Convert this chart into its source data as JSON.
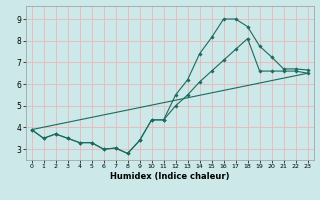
{
  "xlabel": "Humidex (Indice chaleur)",
  "bg_color": "#cce8e8",
  "grid_color": "#e8b8b8",
  "line_color": "#1a6b60",
  "xlim": [
    -0.5,
    23.5
  ],
  "ylim": [
    2.5,
    9.6
  ],
  "xticks": [
    0,
    1,
    2,
    3,
    4,
    5,
    6,
    7,
    8,
    9,
    10,
    11,
    12,
    13,
    14,
    15,
    16,
    17,
    18,
    19,
    20,
    21,
    22,
    23
  ],
  "yticks": [
    3,
    4,
    5,
    6,
    7,
    8,
    9
  ],
  "curve1_x": [
    0,
    1,
    2,
    3,
    4,
    5,
    6,
    7,
    8,
    9,
    10,
    11,
    12,
    13,
    14,
    15,
    16,
    17,
    18,
    19,
    20,
    21,
    22,
    23
  ],
  "curve1_y": [
    3.9,
    3.5,
    3.7,
    3.5,
    3.3,
    3.3,
    3.0,
    3.05,
    2.8,
    3.4,
    4.35,
    4.35,
    5.5,
    6.2,
    7.4,
    8.15,
    9.0,
    9.0,
    8.65,
    7.75,
    7.25,
    6.7,
    6.7,
    6.65
  ],
  "curve2_x": [
    0,
    1,
    2,
    3,
    4,
    5,
    6,
    7,
    8,
    9,
    10,
    11,
    12,
    13,
    14,
    15,
    16,
    17,
    18,
    19,
    20,
    21,
    22,
    23
  ],
  "curve2_y": [
    3.9,
    3.5,
    3.7,
    3.5,
    3.3,
    3.3,
    3.0,
    3.05,
    2.8,
    3.4,
    4.35,
    4.35,
    5.0,
    5.5,
    6.1,
    6.6,
    7.1,
    7.6,
    8.1,
    6.6,
    6.6,
    6.6,
    6.6,
    6.5
  ],
  "curve3_x": [
    0,
    23
  ],
  "curve3_y": [
    3.9,
    6.5
  ]
}
